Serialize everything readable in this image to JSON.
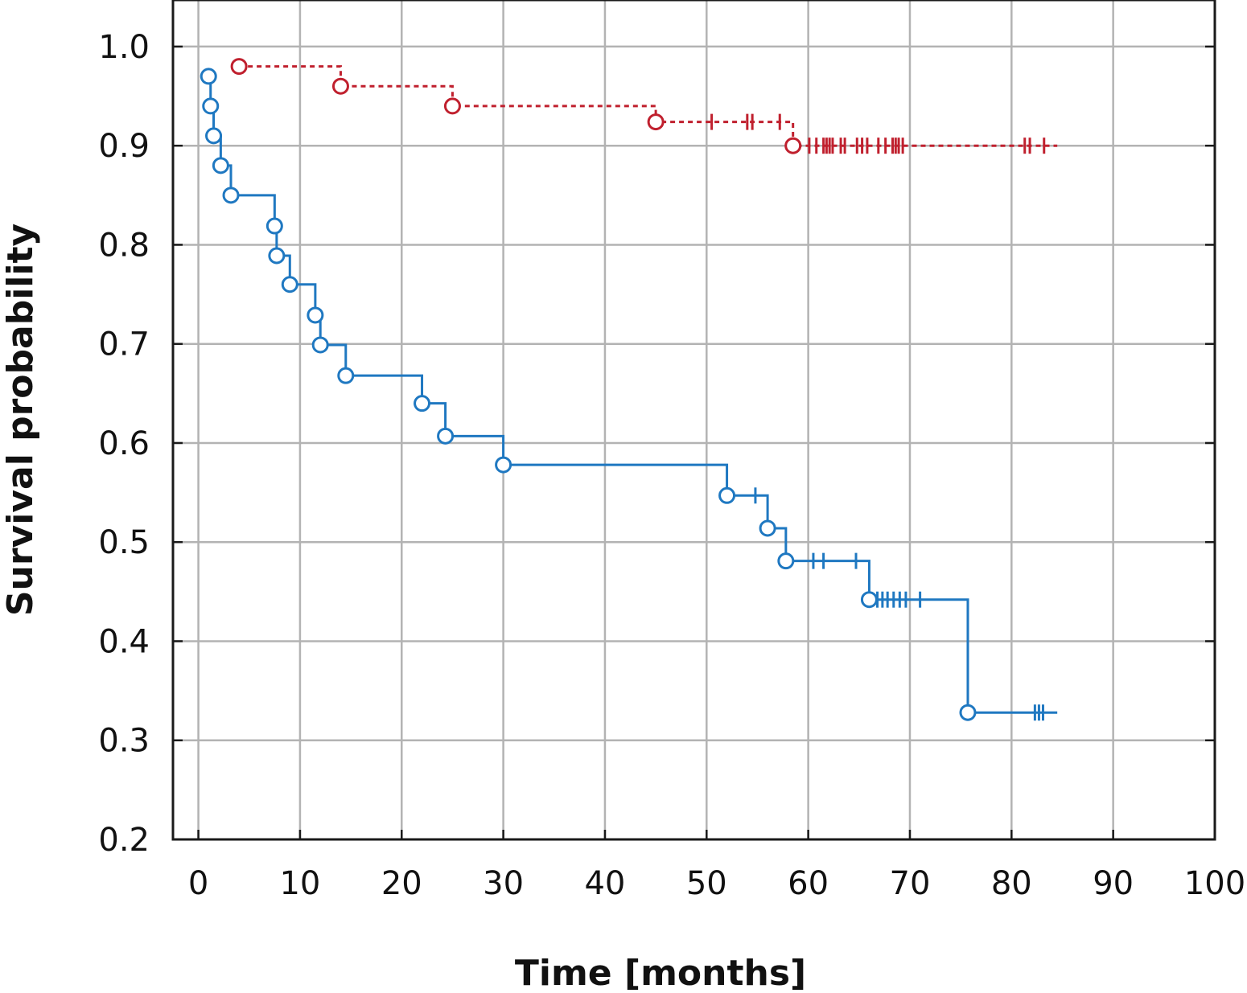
{
  "chart_data": {
    "type": "line",
    "subtype": "kaplan-meier step",
    "xlabel": "Time [months]",
    "ylabel": "Survival probability",
    "xlim": [
      -2.5,
      100
    ],
    "ylim": [
      0.2,
      1.047
    ],
    "xticks": [
      0,
      10,
      20,
      30,
      40,
      50,
      60,
      70,
      80,
      90,
      100
    ],
    "yticks": [
      0.2,
      0.3,
      0.4,
      0.5,
      0.6,
      0.7,
      0.8,
      0.9,
      1.0
    ],
    "grid": true,
    "legend": "none",
    "series": [
      {
        "color": "#c0202e",
        "line_style": "dashed",
        "end_x": 84.5,
        "events": [
          {
            "x": 4,
            "y": 0.98
          },
          {
            "x": 14,
            "y": 0.96
          },
          {
            "x": 25,
            "y": 0.94
          },
          {
            "x": 45,
            "y": 0.924
          },
          {
            "x": 58.5,
            "y": 0.9
          }
        ],
        "censored": [
          {
            "x": 50.5,
            "y": 0.924
          },
          {
            "x": 54,
            "y": 0.924
          },
          {
            "x": 54.5,
            "y": 0.924
          },
          {
            "x": 57.2,
            "y": 0.924
          },
          {
            "x": 60.1,
            "y": 0.9
          },
          {
            "x": 60.8,
            "y": 0.9
          },
          {
            "x": 61.5,
            "y": 0.9
          },
          {
            "x": 61.8,
            "y": 0.9
          },
          {
            "x": 62.1,
            "y": 0.9
          },
          {
            "x": 62.4,
            "y": 0.9
          },
          {
            "x": 63.2,
            "y": 0.9
          },
          {
            "x": 63.6,
            "y": 0.9
          },
          {
            "x": 64.8,
            "y": 0.9
          },
          {
            "x": 65.3,
            "y": 0.9
          },
          {
            "x": 65.8,
            "y": 0.9
          },
          {
            "x": 66.9,
            "y": 0.9
          },
          {
            "x": 67.6,
            "y": 0.9
          },
          {
            "x": 68.3,
            "y": 0.9
          },
          {
            "x": 68.6,
            "y": 0.9
          },
          {
            "x": 68.9,
            "y": 0.9
          },
          {
            "x": 69.3,
            "y": 0.9
          },
          {
            "x": 81.3,
            "y": 0.9
          },
          {
            "x": 81.8,
            "y": 0.9
          },
          {
            "x": 83.2,
            "y": 0.9
          }
        ]
      },
      {
        "color": "#1f78c1",
        "line_style": "solid",
        "start": {
          "x": 1,
          "y": 0.97
        },
        "end_x": 84.5,
        "events": [
          {
            "x": 1,
            "y": 0.97
          },
          {
            "x": 1.2,
            "y": 0.94
          },
          {
            "x": 1.5,
            "y": 0.91
          },
          {
            "x": 2.2,
            "y": 0.88
          },
          {
            "x": 3.2,
            "y": 0.85
          },
          {
            "x": 7.5,
            "y": 0.819
          },
          {
            "x": 7.7,
            "y": 0.789
          },
          {
            "x": 9,
            "y": 0.76
          },
          {
            "x": 11.5,
            "y": 0.729
          },
          {
            "x": 12,
            "y": 0.699
          },
          {
            "x": 14.5,
            "y": 0.668
          },
          {
            "x": 22,
            "y": 0.64
          },
          {
            "x": 24.3,
            "y": 0.607
          },
          {
            "x": 30,
            "y": 0.578
          },
          {
            "x": 52,
            "y": 0.547
          },
          {
            "x": 56,
            "y": 0.514
          },
          {
            "x": 57.8,
            "y": 0.481
          },
          {
            "x": 66,
            "y": 0.442
          },
          {
            "x": 75.7,
            "y": 0.328
          }
        ],
        "censored": [
          {
            "x": 54.8,
            "y": 0.547
          },
          {
            "x": 60.5,
            "y": 0.481
          },
          {
            "x": 61.5,
            "y": 0.481
          },
          {
            "x": 64.7,
            "y": 0.481
          },
          {
            "x": 66.8,
            "y": 0.442
          },
          {
            "x": 67.3,
            "y": 0.442
          },
          {
            "x": 67.8,
            "y": 0.442
          },
          {
            "x": 68.4,
            "y": 0.442
          },
          {
            "x": 69,
            "y": 0.442
          },
          {
            "x": 69.6,
            "y": 0.442
          },
          {
            "x": 71,
            "y": 0.442
          },
          {
            "x": 82.3,
            "y": 0.328
          },
          {
            "x": 82.7,
            "y": 0.328
          },
          {
            "x": 83.1,
            "y": 0.328
          }
        ]
      }
    ]
  }
}
